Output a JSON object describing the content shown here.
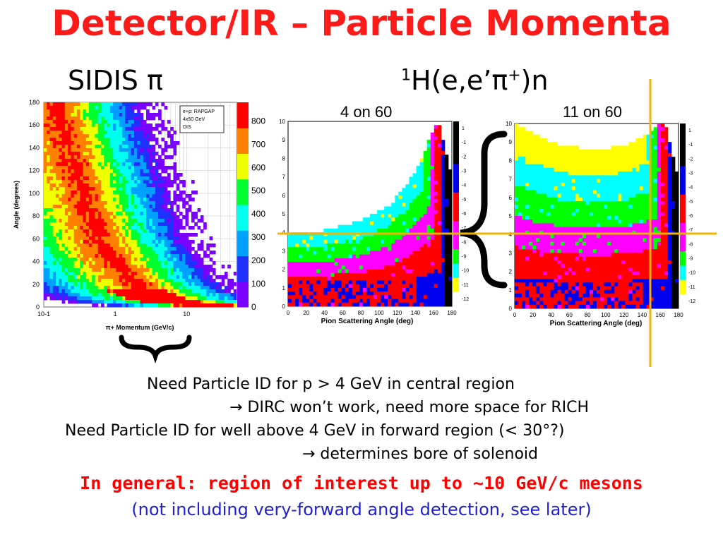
{
  "slide": {
    "title": "Detector/IR – Particle Momenta",
    "left_subtitle": "SIDIS π",
    "reaction_pre": "1",
    "reaction_main": "H(e,e’π",
    "reaction_sup": "+",
    "reaction_post": ")n",
    "caption_left": "4 on 60",
    "caption_right": "11 on 60",
    "notes": [
      "Need Particle ID for p > 4 GeV in central region",
      "→ DIRC won’t work, need more space for RICH",
      "Need Particle ID for well above 4 GeV in forward region  (< 30°?)",
      "→ determines bore of solenoid"
    ],
    "highlight": "In general: region of interest up to ~10 GeV/c mesons",
    "footnote": "(not including very-forward angle detection, see later)"
  },
  "colors": {
    "title": "#ff1a1a",
    "highlight": "#ff0000",
    "footnote": "#2020d0",
    "guide_lines": "#f0b400",
    "palette": [
      "#7a00ff",
      "#2030ff",
      "#00a0ff",
      "#00ffee",
      "#00ff30",
      "#f0ff00",
      "#ff8000",
      "#ff0000"
    ]
  },
  "chart_data": [
    {
      "type": "heatmap",
      "title": "",
      "xlabel": "π+ Momentum (GeV/c)",
      "ylabel": "Angle (degrees)",
      "x_scale": "log",
      "xlim": [
        0.1,
        50
      ],
      "ylim": [
        0,
        180
      ],
      "x_ticks": [
        "10-1",
        "1",
        "10"
      ],
      "y_ticks": [
        0,
        20,
        40,
        60,
        80,
        100,
        120,
        140,
        160,
        180
      ],
      "grid": true,
      "legend": {
        "position": "top-right",
        "entries": [
          "e+p: RAPGAP",
          "4x50 GeV",
          "DIS"
        ]
      },
      "colorbar_ticks": [
        0,
        100,
        200,
        300,
        400,
        500,
        600,
        700,
        800
      ],
      "ridge": {
        "angle_deg": [
          170,
          130,
          90,
          60,
          40,
          25,
          15,
          8,
          4,
          2
        ],
        "momentum_GeV": [
          0.15,
          0.25,
          0.4,
          0.6,
          1.0,
          1.6,
          2.6,
          5,
          10,
          25
        ]
      }
    },
    {
      "type": "heatmap",
      "title": "4 on 60",
      "xlabel": "Pion Scattering Angle (deg)",
      "ylabel": "",
      "xlim": [
        0,
        180
      ],
      "ylim": [
        0,
        10
      ],
      "x_ticks": [
        0,
        20,
        40,
        60,
        80,
        100,
        120,
        140,
        160,
        180
      ],
      "y_ticks": [
        0,
        1,
        2,
        3,
        4,
        5,
        6,
        7,
        8,
        9,
        10
      ],
      "colorbar_ticks": [
        1,
        -1,
        -2,
        -3,
        -4,
        -5,
        -6,
        -7,
        -8,
        -9,
        -10,
        -11,
        -12
      ],
      "boundary": {
        "angle_deg": [
          0,
          40,
          80,
          110,
          130,
          145,
          155,
          165
        ],
        "momentum_GeV": [
          4,
          4.1,
          4.6,
          5.4,
          6.5,
          7.8,
          9,
          10
        ]
      }
    },
    {
      "type": "heatmap",
      "title": "11 on 60",
      "xlabel": "Pion Scattering Angle (deg)",
      "ylabel": "",
      "xlim": [
        0,
        180
      ],
      "ylim": [
        0,
        10
      ],
      "x_ticks": [
        0,
        20,
        40,
        60,
        80,
        100,
        120,
        140,
        160,
        180
      ],
      "y_ticks": [
        0,
        1,
        2,
        3,
        4,
        5,
        6,
        7,
        8,
        9,
        10
      ],
      "colorbar_ticks": [
        1,
        -1,
        -2,
        -3,
        -4,
        -5,
        -6,
        -7,
        -8,
        -9,
        -10,
        -11,
        -12
      ],
      "boundary": {
        "angle_deg": [
          0,
          20,
          50,
          90,
          120,
          145,
          160,
          170
        ],
        "momentum_GeV": [
          10,
          9.5,
          8.8,
          8.6,
          8.8,
          9.4,
          10,
          10
        ]
      }
    }
  ]
}
